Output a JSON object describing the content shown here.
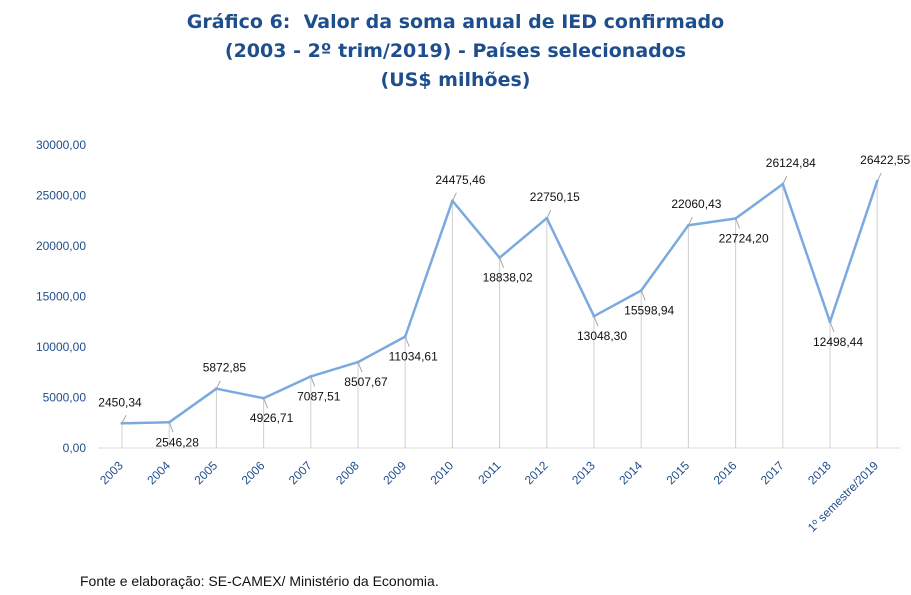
{
  "chart_data": {
    "type": "line",
    "title_lines": [
      "Gráfico 6:  Valor da soma anual de IED confirmado",
      "(2003 - 2º trim/2019) - Países selecionados",
      "(US$ milhões)"
    ],
    "categories": [
      "2003",
      "2004",
      "2005",
      "2006",
      "2007",
      "2008",
      "2009",
      "2010",
      "2011",
      "2012",
      "2013",
      "2014",
      "2015",
      "2016",
      "2017",
      "2018",
      "1º semestre/2019"
    ],
    "series": [
      {
        "values": [
          2450.34,
          2546.28,
          5872.85,
          4926.71,
          7087.51,
          8507.67,
          11034.61,
          24475.46,
          18838.02,
          22750.15,
          13048.3,
          15598.94,
          22060.43,
          22724.2,
          26124.84,
          12498.44,
          26422.55
        ],
        "labels": [
          "2450,34",
          "2546,28",
          "5872,85",
          "4926,71",
          "7087,51",
          "8507,67",
          "11034,61",
          "24475,46",
          "18838,02",
          "22750,15",
          "13048,30",
          "15598,94",
          "22060,43",
          "22724,20",
          "26124,84",
          "12498,44",
          "26422,55"
        ],
        "color": "#7aaadf"
      }
    ],
    "yticks": [
      "0,00",
      "5000,00",
      "10000,00",
      "15000,00",
      "20000,00",
      "25000,00",
      "30000,00"
    ],
    "ylim": [
      0,
      30000
    ],
    "grid": false,
    "colors": {
      "axis_text": "#1f4e8c",
      "line": "#7aaadf",
      "drop_lines": "#d0d0d0"
    }
  },
  "source_note": "Fonte e elaboração: SE-CAMEX/ Ministério da Economia."
}
